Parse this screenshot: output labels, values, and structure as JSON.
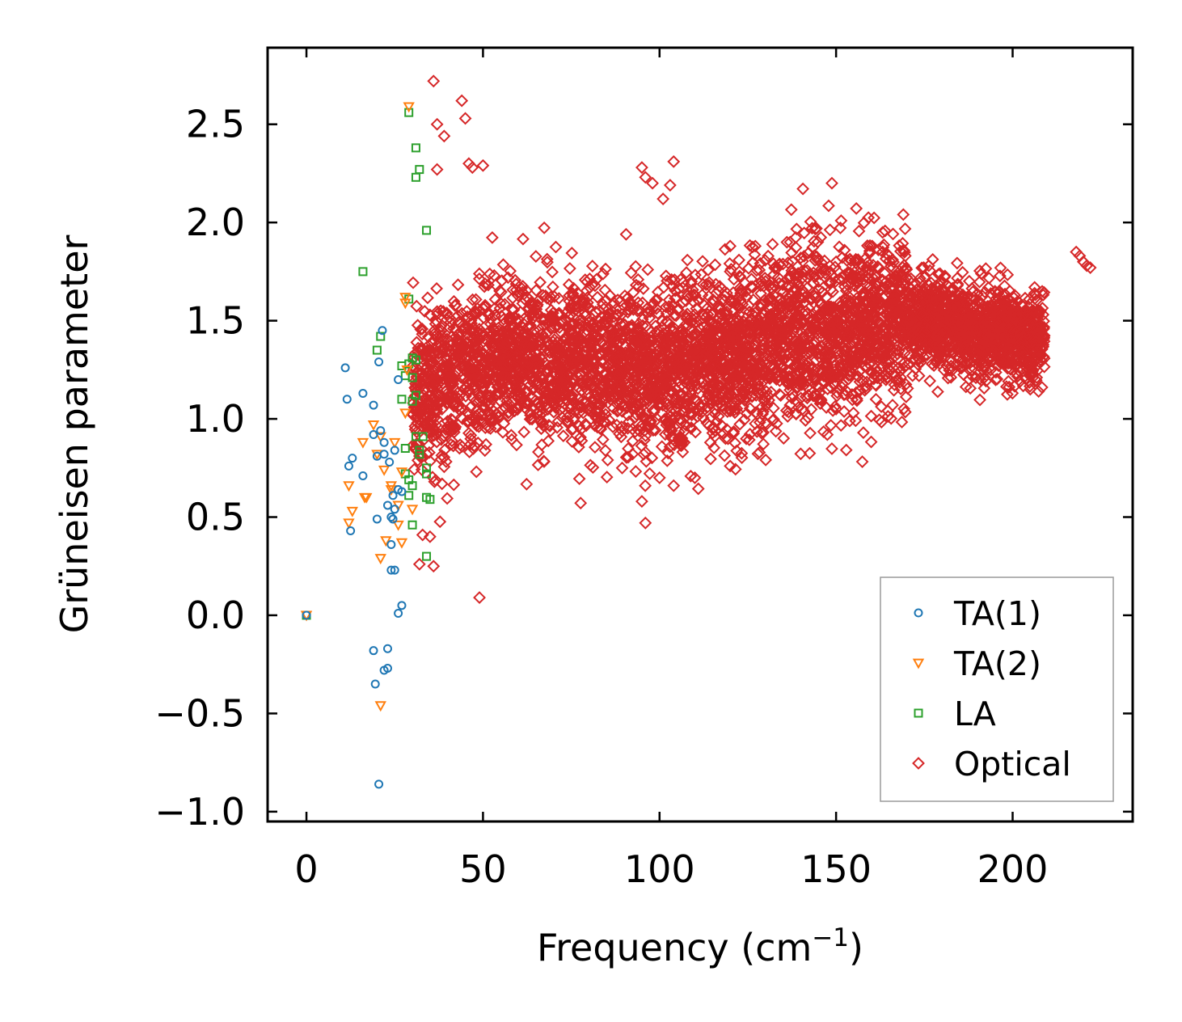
{
  "chart_data": {
    "type": "scatter",
    "title": "",
    "xlabel": "Frequency (cm",
    "xlabel_sup": "−1",
    "xlabel_end": ")",
    "ylabel": "Grüneisen parameter",
    "xlim": [
      -11,
      234
    ],
    "ylim": [
      -1.05,
      2.89
    ],
    "xticks": [
      0,
      50,
      100,
      150,
      200
    ],
    "xtick_labels": [
      "0",
      "50",
      "100",
      "150",
      "200"
    ],
    "yticks": [
      -1.0,
      -0.5,
      0.0,
      0.5,
      1.0,
      1.5,
      2.0,
      2.5
    ],
    "ytick_labels": [
      "−1.0",
      "−0.5",
      "0.0",
      "0.5",
      "1.0",
      "1.5",
      "2.0",
      "2.5"
    ],
    "grid": false,
    "legend_position": "bottom-right",
    "series": [
      {
        "name": "TA(1)",
        "marker": "circle",
        "color": "#1f77b4",
        "points": [
          [
            0,
            0
          ],
          [
            11,
            1.26
          ],
          [
            11.5,
            1.1
          ],
          [
            12,
            0.76
          ],
          [
            13,
            0.8
          ],
          [
            12.5,
            0.43
          ],
          [
            16,
            1.13
          ],
          [
            16,
            0.71
          ],
          [
            19,
            1.07
          ],
          [
            19,
            0.92
          ],
          [
            20,
            0.81
          ],
          [
            20,
            0.49
          ],
          [
            20.5,
            1.29
          ],
          [
            21,
            0.94
          ],
          [
            21.5,
            1.45
          ],
          [
            22,
            0.88
          ],
          [
            23,
            0.56
          ],
          [
            23.5,
            0.78
          ],
          [
            24,
            0.5
          ],
          [
            24.5,
            0.61
          ],
          [
            24,
            0.36
          ],
          [
            25,
            0.84
          ],
          [
            25,
            0.54
          ],
          [
            26,
            1.2
          ],
          [
            26,
            0.64
          ],
          [
            27,
            0.63
          ],
          [
            24,
            0.23
          ],
          [
            25,
            0.23
          ],
          [
            26,
            0.01
          ],
          [
            27,
            0.05
          ],
          [
            19,
            -0.18
          ],
          [
            23,
            -0.17
          ],
          [
            19.5,
            -0.35
          ],
          [
            22,
            -0.28
          ],
          [
            23,
            -0.27
          ],
          [
            20.5,
            -0.86
          ],
          [
            22,
            0.82
          ],
          [
            24.5,
            0.49
          ]
        ]
      },
      {
        "name": "TA(2)",
        "marker": "triangle-down",
        "color": "#ff7f0e",
        "points": [
          [
            0,
            0
          ],
          [
            12,
            0.66
          ],
          [
            12,
            0.47
          ],
          [
            13,
            0.53
          ],
          [
            16,
            0.88
          ],
          [
            17,
            0.6
          ],
          [
            16.5,
            0.6
          ],
          [
            19,
            0.97
          ],
          [
            21,
            0.91
          ],
          [
            20,
            0.82
          ],
          [
            22,
            0.74
          ],
          [
            21,
            0.29
          ],
          [
            22.5,
            0.38
          ],
          [
            24,
            0.64
          ],
          [
            25,
            0.88
          ],
          [
            26,
            0.56
          ],
          [
            27,
            0.37
          ],
          [
            27,
            0.73
          ],
          [
            28,
            1.62
          ],
          [
            28,
            1.59
          ],
          [
            28.5,
            1.25
          ],
          [
            28,
            1.03
          ],
          [
            29,
            2.59
          ],
          [
            30,
            0.54
          ],
          [
            21,
            -0.46
          ],
          [
            24,
            0.66
          ],
          [
            26,
            0.46
          ]
        ]
      },
      {
        "name": "LA",
        "marker": "square",
        "color": "#2ca02c",
        "points": [
          [
            0,
            0
          ],
          [
            16,
            1.75
          ],
          [
            20,
            1.35
          ],
          [
            21,
            1.42
          ],
          [
            27,
            1.27
          ],
          [
            28,
            1.22
          ],
          [
            29,
            1.61
          ],
          [
            29,
            2.56
          ],
          [
            30,
            1.31
          ],
          [
            30,
            1.21
          ],
          [
            31,
            2.38
          ],
          [
            31,
            2.23
          ],
          [
            32,
            2.27
          ],
          [
            34,
            1.96
          ],
          [
            30,
            1.09
          ],
          [
            31,
            1.12
          ],
          [
            31,
            0.91
          ],
          [
            32,
            0.84
          ],
          [
            32,
            0.82
          ],
          [
            33,
            0.91
          ],
          [
            34,
            0.75
          ],
          [
            34,
            0.72
          ],
          [
            28,
            0.72
          ],
          [
            29,
            0.69
          ],
          [
            30,
            0.66
          ],
          [
            29,
            0.61
          ],
          [
            30,
            0.46
          ],
          [
            34,
            0.6
          ],
          [
            35,
            0.59
          ],
          [
            34,
            0.3
          ],
          [
            28,
            0.85
          ],
          [
            31,
            1.3
          ],
          [
            27,
            1.1
          ],
          [
            29,
            1.28
          ]
        ]
      },
      {
        "name": "Optical",
        "marker": "diamond",
        "color": "#d62728",
        "generator": {
          "count": 5200,
          "freq_range": [
            30,
            209
          ],
          "gamma_trend": [
            [
              30,
              1.12
            ],
            [
              60,
              1.33
            ],
            [
              100,
              1.22
            ],
            [
              150,
              1.47
            ],
            [
              175,
              1.5
            ],
            [
              209,
              1.4
            ]
          ],
          "spread_sd": 0.21
        },
        "points": [
          [
            36,
            2.72
          ],
          [
            44,
            2.62
          ],
          [
            45,
            2.53
          ],
          [
            37,
            2.5
          ],
          [
            39,
            2.44
          ],
          [
            46,
            2.3
          ],
          [
            50,
            2.29
          ],
          [
            37,
            2.27
          ],
          [
            47,
            2.28
          ],
          [
            95,
            2.28
          ],
          [
            96,
            2.23
          ],
          [
            104,
            2.31
          ],
          [
            103,
            2.19
          ],
          [
            98,
            2.2
          ],
          [
            101,
            2.12
          ],
          [
            120,
            1.88
          ],
          [
            137,
            1.9
          ],
          [
            120,
            1.75
          ],
          [
            130,
            1.7
          ],
          [
            140,
            1.82
          ],
          [
            150,
            1.8
          ],
          [
            160,
            1.75
          ],
          [
            170,
            1.72
          ],
          [
            175,
            1.72
          ],
          [
            180,
            1.6
          ],
          [
            185,
            1.5
          ],
          [
            190,
            1.45
          ],
          [
            195,
            1.65
          ],
          [
            198,
            1.58
          ],
          [
            203,
            1.52
          ],
          [
            208,
            1.4
          ],
          [
            193,
            1.3
          ],
          [
            197,
            1.55
          ],
          [
            200,
            1.5
          ],
          [
            218,
            1.85
          ],
          [
            219,
            1.83
          ],
          [
            220,
            1.8
          ],
          [
            221,
            1.78
          ],
          [
            222,
            1.77
          ],
          [
            49,
            0.09
          ],
          [
            36,
            0.25
          ],
          [
            32,
            0.26
          ],
          [
            35,
            0.4
          ],
          [
            96,
            0.47
          ],
          [
            95,
            0.58
          ],
          [
            100,
            0.7
          ],
          [
            104,
            0.66
          ],
          [
            110,
            0.7
          ],
          [
            120,
            0.76
          ],
          [
            130,
            0.98
          ],
          [
            150,
            1.05
          ],
          [
            165,
            1.25
          ],
          [
            166,
            1.07
          ],
          [
            140,
            1.18
          ],
          [
            160,
            1.38
          ],
          [
            170,
            1.5
          ]
        ]
      }
    ]
  }
}
